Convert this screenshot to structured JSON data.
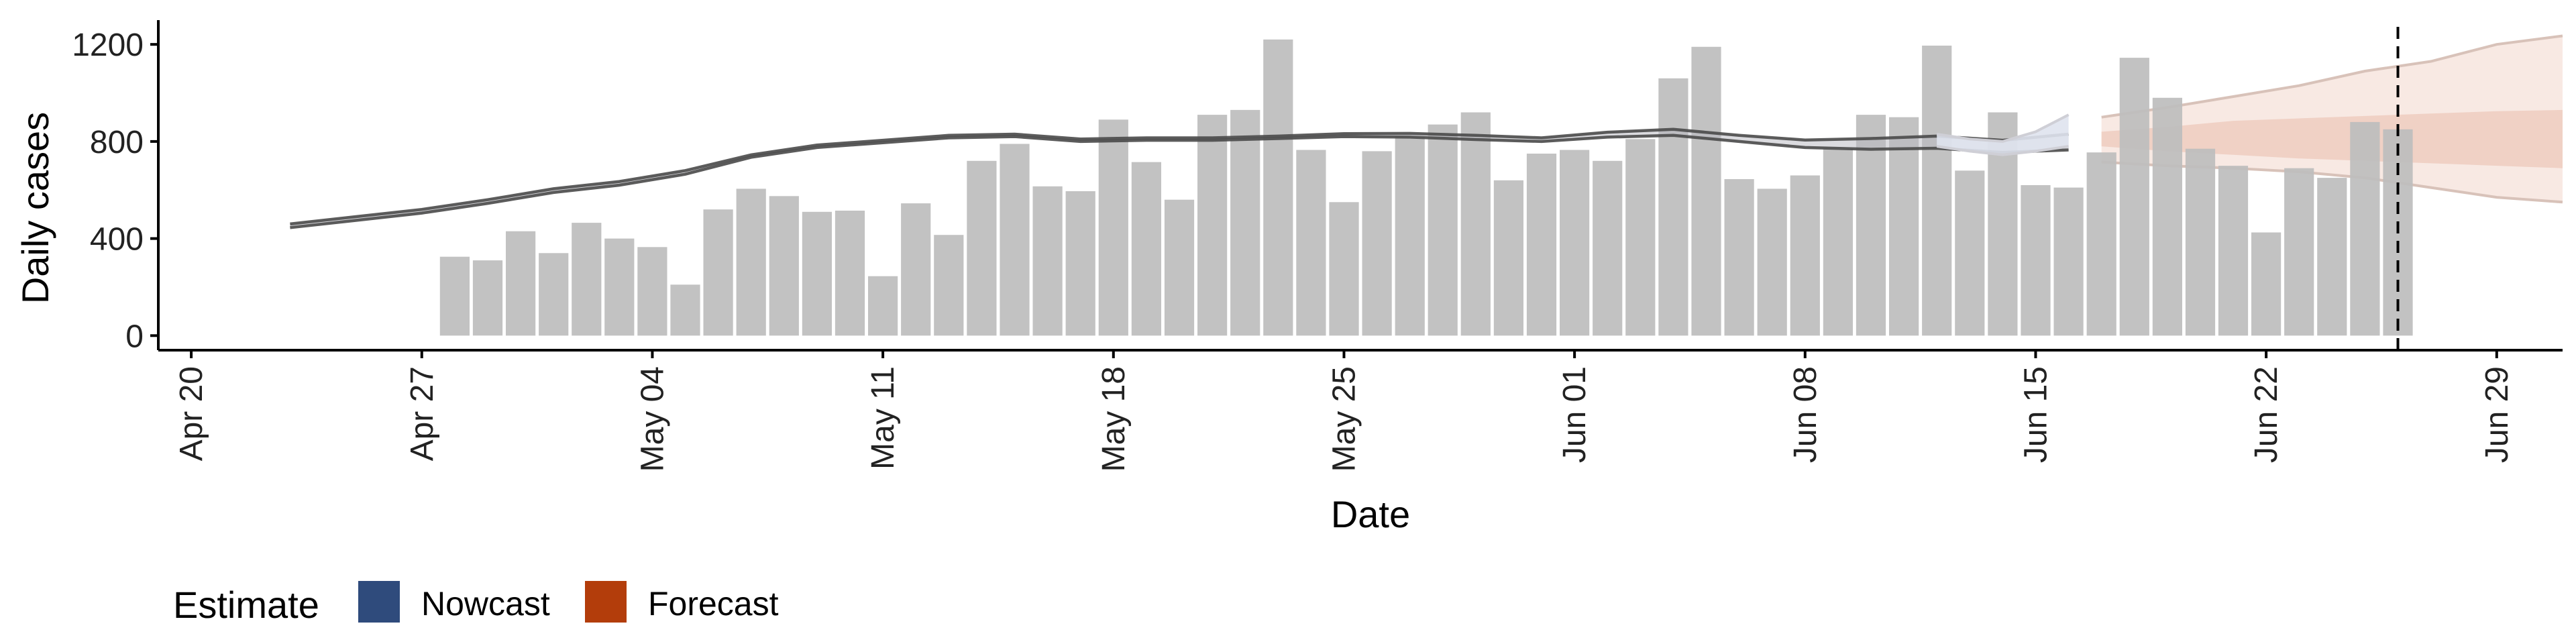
{
  "chart_data": {
    "type": "bar",
    "xlabel": "Date",
    "ylabel": "Daily cases",
    "ylim": [
      -60,
      1300
    ],
    "yticks": [
      0,
      400,
      800,
      1200
    ],
    "x_range_days": [
      -1,
      72
    ],
    "x_ticks": [
      {
        "day": 0,
        "label": "Apr 20"
      },
      {
        "day": 7,
        "label": "Apr 27"
      },
      {
        "day": 14,
        "label": "May 04"
      },
      {
        "day": 21,
        "label": "May 11"
      },
      {
        "day": 28,
        "label": "May 18"
      },
      {
        "day": 35,
        "label": "May 25"
      },
      {
        "day": 42,
        "label": "Jun 01"
      },
      {
        "day": 49,
        "label": "Jun 08"
      },
      {
        "day": 56,
        "label": "Jun 15"
      },
      {
        "day": 63,
        "label": "Jun 22"
      },
      {
        "day": 70,
        "label": "Jun 29"
      }
    ],
    "reference_line_day": 67,
    "bars": {
      "start_day": 8,
      "values": [
        325,
        310,
        430,
        340,
        465,
        400,
        365,
        210,
        520,
        605,
        575,
        510,
        515,
        245,
        545,
        415,
        720,
        790,
        615,
        595,
        890,
        715,
        560,
        910,
        930,
        1220,
        765,
        550,
        760,
        820,
        870,
        920,
        640,
        750,
        765,
        720,
        810,
        1060,
        1190,
        645,
        605,
        660,
        770,
        910,
        900,
        1195,
        680,
        920,
        620,
        610,
        755,
        1145,
        980,
        770,
        700,
        425,
        690,
        650,
        880,
        850
      ]
    },
    "series": [
      {
        "name": "Estimate (past)",
        "days": [
          3,
          5,
          7,
          9,
          11,
          13,
          15,
          17,
          19,
          21,
          23,
          25,
          27,
          29,
          31,
          33,
          35,
          37,
          39,
          41,
          43,
          45,
          47,
          49,
          51,
          53,
          55,
          57
        ],
        "upper": [
          460,
          490,
          520,
          560,
          605,
          635,
          680,
          745,
          785,
          805,
          825,
          830,
          810,
          815,
          815,
          822,
          832,
          833,
          825,
          815,
          838,
          850,
          825,
          806,
          812,
          822,
          805,
          830
        ],
        "lower": [
          445,
          475,
          505,
          545,
          590,
          620,
          665,
          735,
          775,
          795,
          815,
          820,
          800,
          805,
          805,
          812,
          820,
          818,
          808,
          800,
          818,
          825,
          800,
          775,
          768,
          772,
          755,
          765
        ]
      },
      {
        "name": "Nowcast",
        "days": [
          53,
          54,
          55,
          56,
          57
        ],
        "upper": [
          830,
          810,
          800,
          840,
          910
        ],
        "lower": [
          780,
          760,
          745,
          760,
          780
        ]
      },
      {
        "name": "Forecast",
        "days": [
          58,
          60,
          62,
          64,
          66,
          68,
          70,
          72
        ],
        "outer_upper": [
          900,
          940,
          985,
          1030,
          1090,
          1130,
          1200,
          1235
        ],
        "inner_upper": [
          840,
          860,
          885,
          895,
          905,
          915,
          925,
          930
        ],
        "inner_lower": [
          780,
          760,
          745,
          730,
          720,
          710,
          700,
          690
        ],
        "outer_lower": [
          715,
          700,
          690,
          675,
          650,
          610,
          570,
          550
        ]
      }
    ],
    "legend": {
      "title": "Estimate",
      "position": "bottom-left",
      "items": [
        {
          "label": "Nowcast",
          "color": "#2f4b7c"
        },
        {
          "label": "Forecast",
          "color": "#b33d0b"
        }
      ]
    },
    "colors": {
      "bar": "#bdbdbd",
      "estimate_line": "#4a4a4a",
      "nowcast_band": "#dfe3ee",
      "forecast_outer": "#f8e9e3",
      "forecast_inner": "#efcdbf",
      "forecast_edge": "#d8c2b9",
      "axis": "#000000",
      "reference_line": "#000000"
    }
  }
}
